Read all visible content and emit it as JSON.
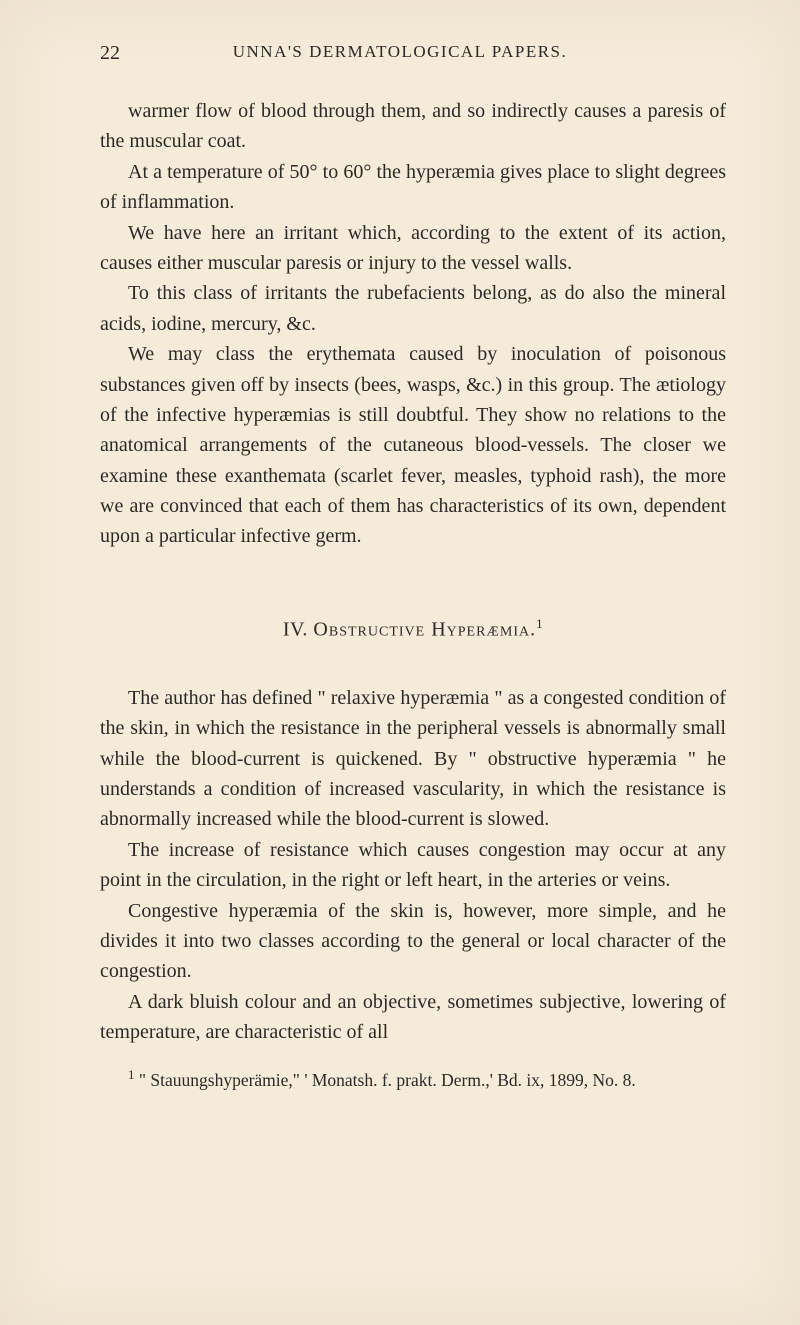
{
  "page": {
    "number": "22",
    "runningHeader": "UNNA'S DERMATOLOGICAL PAPERS."
  },
  "paragraphs": {
    "p1": "warmer flow of blood through them, and so indirectly causes a paresis of the muscular coat.",
    "p2": "At a temperature of 50° to 60° the hyperæmia gives place to slight degrees of inflammation.",
    "p3": "We have here an irritant which, according to the extent of its action, causes either muscular paresis or injury to the vessel walls.",
    "p4": "To this class of irritants the rubefacients belong, as do also the mineral acids, iodine, mercury, &c.",
    "p5": "We may class the erythemata caused by inoculation of poisonous substances given off by insects (bees, wasps, &c.) in this group. The ætiology of the infective hyperæmias is still doubtful. They show no relations to the anatomical arrangements of the cutaneous blood-vessels. The closer we examine these exanthemata (scarlet fever, measles, typhoid rash), the more we are convinced that each of them has characteristics of its own, dependent upon a particular infective germ."
  },
  "sectionTitle": {
    "numeral": "IV.",
    "text": "Obstructive Hyperæmia.",
    "noteMark": "1"
  },
  "secondParagraphs": {
    "p6": "The author has defined \" relaxive hyperæmia \" as a congested condition of the skin, in which the resistance in the peripheral vessels is abnormally small while the blood-current is quickened. By \" obstructive hyperæmia \" he understands a condition of increased vascularity, in which the resistance is abnormally increased while the blood-current is slowed.",
    "p7": "The increase of resistance which causes congestion may occur at any point in the circulation, in the right or left heart, in the arteries or veins.",
    "p8": "Congestive hyperæmia of the skin is, however, more simple, and he divides it into two classes according to the general or local character of the congestion.",
    "p9": "A dark bluish colour and an objective, sometimes subjective, lowering of temperature, are characteristic of all"
  },
  "footnote": {
    "mark": "1",
    "text": "\" Stauungshyperämie,\" ' Monatsh. f. prakt. Derm.,' Bd. ix, 1899, No. 8."
  },
  "styling": {
    "backgroundColor": "#f4ebd8",
    "textColor": "#2a2a28",
    "bodyFontSize": 20,
    "footnoteFontSize": 17.5,
    "headerFontSize": 17,
    "lineHeight": 1.52,
    "textIndent": 28,
    "pageWidth": 800,
    "pageHeight": 1325
  }
}
